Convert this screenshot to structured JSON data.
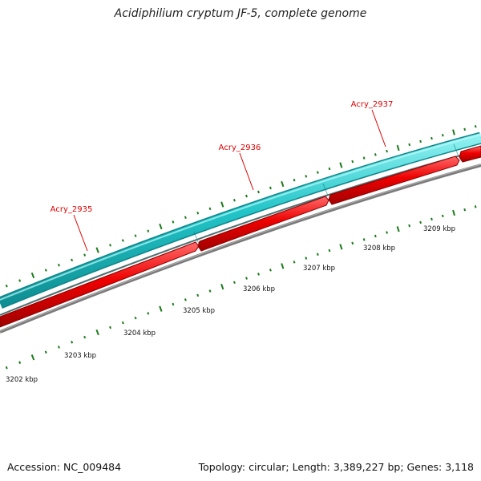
{
  "title": "Acidiphilium cryptum JF-5, complete genome",
  "footer": {
    "accession": "Accession: NC_009484",
    "summary": "Topology: circular; Length: 3,389,227 bp; Genes: 3,118"
  },
  "genes": [
    {
      "label": "Acry_2935"
    },
    {
      "label": "Acry_2936"
    },
    {
      "label": "Acry_2937"
    }
  ],
  "ruler": {
    "ticks": [
      "3202 kbp",
      "3203 kbp",
      "3204 kbp",
      "3205 kbp",
      "3206 kbp",
      "3207 kbp",
      "3208 kbp",
      "3209 kbp"
    ]
  },
  "colors": {
    "forward_strand": "#22c4c8",
    "reverse_strand": "#ee0000",
    "backbone": "#7a7a7a",
    "tick": "#1a7a1a",
    "gene_label": "#dd0000"
  }
}
